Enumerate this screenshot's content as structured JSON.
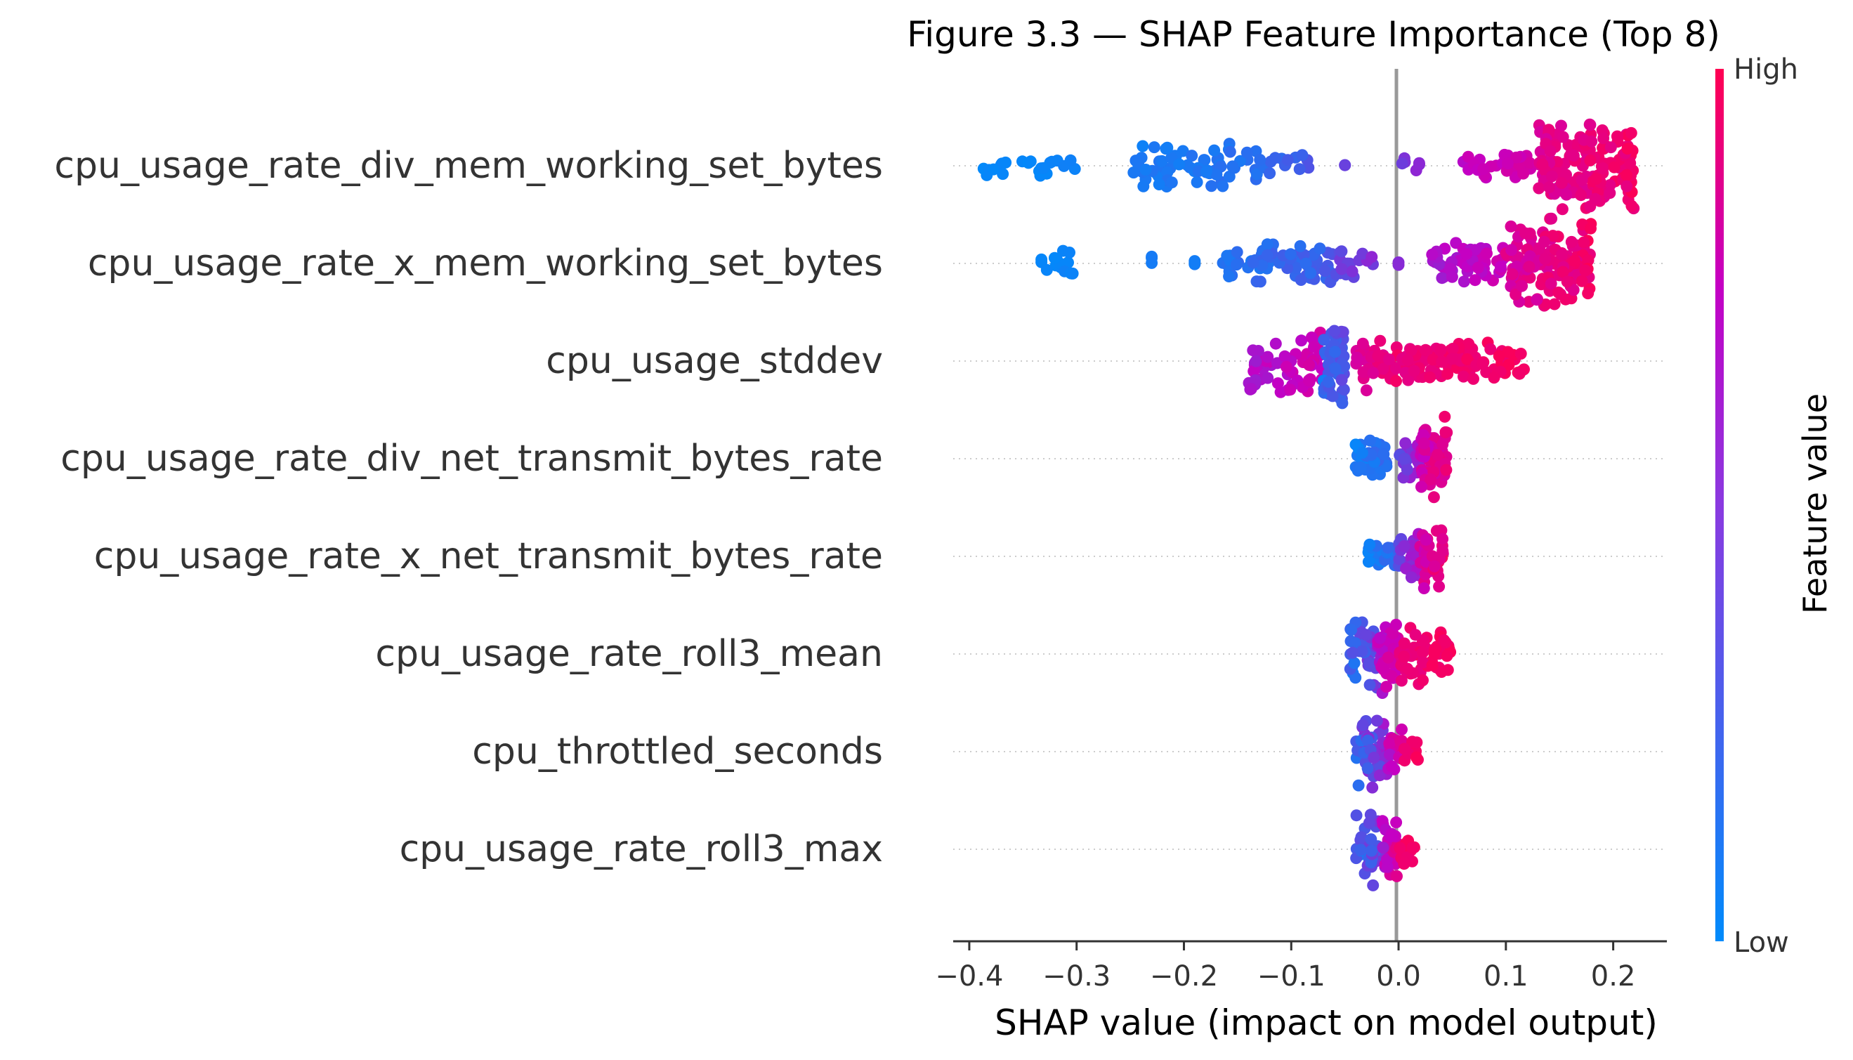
{
  "chart_data": {
    "type": "scatter",
    "title": "Figure 3.3 — SHAP Feature Importance (Top 8)",
    "xlabel": "SHAP value (impact on model output)",
    "ylabel": "",
    "xlim": [
      -0.415,
      0.25
    ],
    "xticks": [
      -0.4,
      -0.3,
      -0.2,
      -0.1,
      0.0,
      0.1,
      0.2
    ],
    "xtick_labels": [
      "−0.4",
      "−0.3",
      "−0.2",
      "−0.1",
      "0.0",
      "0.1",
      "0.2"
    ],
    "colorbar": {
      "label": "Feature value",
      "high_label": "High",
      "low_label": "Low",
      "low_color": "#008bfb",
      "high_color": "#ff0052",
      "mid_color": "#c400c4"
    },
    "grid": "dotted horizontal per feature",
    "features": [
      {
        "name": "cpu_usage_rate_div_mem_working_set_bytes",
        "segments": [
          {
            "from": -0.39,
            "to": -0.36,
            "n": 8,
            "low": 0.0,
            "high": 0.04,
            "spread": 0.3
          },
          {
            "from": -0.36,
            "to": -0.3,
            "n": 14,
            "low": 0.0,
            "high": 0.06,
            "spread": 0.3
          },
          {
            "from": -0.25,
            "to": -0.13,
            "n": 70,
            "low": 0.03,
            "high": 0.15,
            "spread": 0.55
          },
          {
            "from": -0.13,
            "to": -0.08,
            "n": 14,
            "low": 0.1,
            "high": 0.25,
            "spread": 0.3
          },
          {
            "from": -0.05,
            "to": -0.05,
            "n": 2,
            "low": 0.3,
            "high": 0.35,
            "spread": 0.1
          },
          {
            "from": 0.0,
            "to": 0.02,
            "n": 6,
            "low": 0.3,
            "high": 0.45,
            "spread": 0.2
          },
          {
            "from": 0.06,
            "to": 0.13,
            "n": 30,
            "low": 0.55,
            "high": 0.75,
            "spread": 0.35
          },
          {
            "from": 0.13,
            "to": 0.22,
            "n": 150,
            "low": 0.7,
            "high": 1.0,
            "spread": 1.0
          }
        ]
      },
      {
        "name": "cpu_usage_rate_x_mem_working_set_bytes",
        "segments": [
          {
            "from": -0.34,
            "to": -0.3,
            "n": 14,
            "low": 0.0,
            "high": 0.05,
            "spread": 0.35
          },
          {
            "from": -0.23,
            "to": -0.23,
            "n": 3,
            "low": 0.05,
            "high": 0.1,
            "spread": 0.15
          },
          {
            "from": -0.19,
            "to": -0.19,
            "n": 3,
            "low": 0.05,
            "high": 0.1,
            "spread": 0.15
          },
          {
            "from": -0.17,
            "to": -0.06,
            "n": 70,
            "low": 0.05,
            "high": 0.25,
            "spread": 0.55
          },
          {
            "from": -0.06,
            "to": -0.02,
            "n": 16,
            "low": 0.25,
            "high": 0.45,
            "spread": 0.35
          },
          {
            "from": 0.0,
            "to": 0.0,
            "n": 2,
            "low": 0.4,
            "high": 0.45,
            "spread": 0.1
          },
          {
            "from": 0.03,
            "to": 0.1,
            "n": 50,
            "low": 0.45,
            "high": 0.7,
            "spread": 0.5
          },
          {
            "from": 0.1,
            "to": 0.18,
            "n": 130,
            "low": 0.65,
            "high": 1.0,
            "spread": 1.0
          }
        ]
      },
      {
        "name": "cpu_usage_stddev",
        "segments": [
          {
            "from": -0.14,
            "to": -0.07,
            "n": 60,
            "low": 0.45,
            "high": 0.75,
            "spread": 0.8
          },
          {
            "from": -0.07,
            "to": -0.05,
            "n": 50,
            "low": 0.05,
            "high": 0.35,
            "spread": 1.0
          },
          {
            "from": -0.04,
            "to": 0.0,
            "n": 40,
            "low": 0.7,
            "high": 0.95,
            "spread": 0.7
          },
          {
            "from": 0.0,
            "to": 0.12,
            "n": 90,
            "low": 0.8,
            "high": 1.0,
            "spread": 0.45
          }
        ]
      },
      {
        "name": "cpu_usage_rate_div_net_transmit_bytes_rate",
        "segments": [
          {
            "from": -0.04,
            "to": -0.01,
            "n": 40,
            "low": 0.0,
            "high": 0.2,
            "spread": 0.5
          },
          {
            "from": 0.0,
            "to": 0.02,
            "n": 25,
            "low": 0.25,
            "high": 0.55,
            "spread": 0.45
          },
          {
            "from": 0.02,
            "to": 0.045,
            "n": 60,
            "low": 0.55,
            "high": 0.95,
            "spread": 1.0
          }
        ]
      },
      {
        "name": "cpu_usage_rate_x_net_transmit_bytes_rate",
        "segments": [
          {
            "from": -0.03,
            "to": 0.0,
            "n": 25,
            "low": 0.0,
            "high": 0.2,
            "spread": 0.3
          },
          {
            "from": 0.0,
            "to": 0.02,
            "n": 30,
            "low": 0.25,
            "high": 0.6,
            "spread": 0.5
          },
          {
            "from": 0.02,
            "to": 0.045,
            "n": 35,
            "low": 0.6,
            "high": 1.0,
            "spread": 0.8
          }
        ]
      },
      {
        "name": "cpu_usage_rate_roll3_mean",
        "segments": [
          {
            "from": -0.045,
            "to": -0.02,
            "n": 50,
            "low": 0.05,
            "high": 0.45,
            "spread": 0.95
          },
          {
            "from": -0.02,
            "to": 0.0,
            "n": 45,
            "low": 0.45,
            "high": 0.85,
            "spread": 0.95
          },
          {
            "from": 0.0,
            "to": 0.05,
            "n": 60,
            "low": 0.8,
            "high": 1.0,
            "spread": 0.7
          }
        ]
      },
      {
        "name": "cpu_throttled_seconds",
        "segments": [
          {
            "from": -0.04,
            "to": -0.01,
            "n": 50,
            "low": 0.05,
            "high": 0.6,
            "spread": 0.9
          },
          {
            "from": -0.01,
            "to": 0.005,
            "n": 25,
            "low": 0.5,
            "high": 0.85,
            "spread": 0.6
          },
          {
            "from": 0.005,
            "to": 0.02,
            "n": 10,
            "low": 0.85,
            "high": 1.0,
            "spread": 0.4
          }
        ]
      },
      {
        "name": "cpu_usage_rate_roll3_max",
        "segments": [
          {
            "from": -0.04,
            "to": -0.015,
            "n": 30,
            "low": 0.05,
            "high": 0.45,
            "spread": 0.9
          },
          {
            "from": -0.015,
            "to": 0.0,
            "n": 30,
            "low": 0.45,
            "high": 0.85,
            "spread": 0.7
          },
          {
            "from": 0.0,
            "to": 0.015,
            "n": 15,
            "low": 0.85,
            "high": 1.0,
            "spread": 0.4
          }
        ]
      }
    ]
  }
}
